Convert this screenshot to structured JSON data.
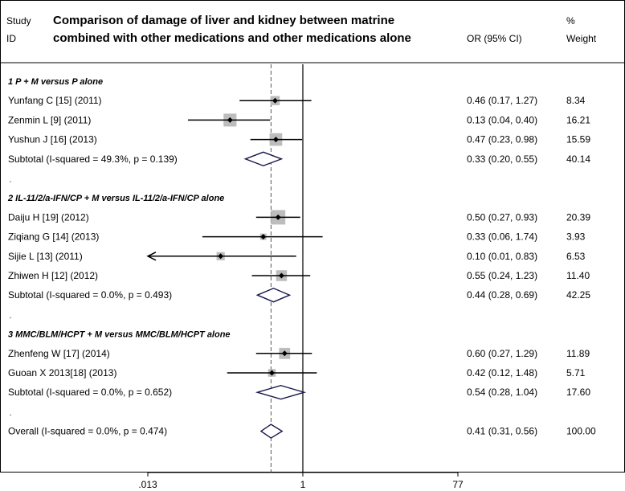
{
  "header": {
    "study_label": "Study",
    "id_label": "ID",
    "title_line1": "Comparison of damage of liver and kidney between matrine",
    "title_line2": "combined with other medications and other medications alone",
    "or_label": "OR (95% CI)",
    "weight_label_line1": "%",
    "weight_label_line2": "Weight"
  },
  "chart_data": {
    "type": "forest",
    "title": "Comparison of damage of liver and kidney between matrine combined with other medications and other medications alone",
    "scale": "log",
    "xlim": [
      0.013,
      77
    ],
    "x_ticks": [
      {
        "value": 0.013,
        "label": ".013"
      },
      {
        "value": 1,
        "label": "1"
      },
      {
        "value": 77,
        "label": "77"
      }
    ],
    "null_line": 1,
    "overall_effect": 0.41,
    "rows": [
      {
        "kind": "group",
        "text": "1  P + M versus P alone"
      },
      {
        "kind": "study",
        "name": "Yunfang C [15] (2011)",
        "or": 0.46,
        "lo": 0.17,
        "hi": 1.27,
        "ci_text": "0.46 (0.17, 1.27)",
        "weight": 8.34,
        "weight_text": "8.34"
      },
      {
        "kind": "study",
        "name": "Zenmin L [9] (2011)",
        "or": 0.13,
        "lo": 0.04,
        "hi": 0.4,
        "ci_text": "0.13 (0.04, 0.40)",
        "weight": 16.21,
        "weight_text": "16.21"
      },
      {
        "kind": "study",
        "name": "Yushun J [16] (2013)",
        "or": 0.47,
        "lo": 0.23,
        "hi": 0.98,
        "ci_text": "0.47 (0.23, 0.98)",
        "weight": 15.59,
        "weight_text": "15.59"
      },
      {
        "kind": "subtotal",
        "name": "Subtotal  (I-squared = 49.3%, p = 0.139)",
        "or": 0.33,
        "lo": 0.2,
        "hi": 0.55,
        "ci_text": "0.33 (0.20, 0.55)",
        "weight_text": "40.14"
      },
      {
        "kind": "spacer"
      },
      {
        "kind": "group",
        "text": "2  IL-11/2/a-IFN/CP + M versus IL-11/2/a-IFN/CP alone"
      },
      {
        "kind": "study",
        "name": "Daiju H [19] (2012)",
        "or": 0.5,
        "lo": 0.27,
        "hi": 0.93,
        "ci_text": "0.50 (0.27, 0.93)",
        "weight": 20.39,
        "weight_text": "20.39"
      },
      {
        "kind": "study",
        "name": "Ziqiang G [14] (2013)",
        "or": 0.33,
        "lo": 0.06,
        "hi": 1.74,
        "ci_text": "0.33 (0.06, 1.74)",
        "weight": 3.93,
        "weight_text": "3.93"
      },
      {
        "kind": "study",
        "name": "Sijie L [13] (2011)",
        "or": 0.1,
        "lo": 0.01,
        "hi": 0.83,
        "ci_text": "0.10 (0.01, 0.83)",
        "weight": 6.53,
        "weight_text": "6.53",
        "arrow_left": true
      },
      {
        "kind": "study",
        "name": "Zhiwen H [12] (2012)",
        "or": 0.55,
        "lo": 0.24,
        "hi": 1.23,
        "ci_text": "0.55 (0.24, 1.23)",
        "weight": 11.4,
        "weight_text": "11.40"
      },
      {
        "kind": "subtotal",
        "name": "Subtotal  (I-squared = 0.0%, p = 0.493)",
        "or": 0.44,
        "lo": 0.28,
        "hi": 0.69,
        "ci_text": "0.44 (0.28, 0.69)",
        "weight_text": "42.25"
      },
      {
        "kind": "spacer"
      },
      {
        "kind": "group",
        "text": "3  MMC/BLM/HCPT + M versus MMC/BLM/HCPT  alone"
      },
      {
        "kind": "study",
        "name": "Zhenfeng W [17] (2014)",
        "or": 0.6,
        "lo": 0.27,
        "hi": 1.29,
        "ci_text": "0.60 (0.27, 1.29)",
        "weight": 11.89,
        "weight_text": "11.89"
      },
      {
        "kind": "study",
        "name": "Guoan X 2013[18] (2013)",
        "or": 0.42,
        "lo": 0.12,
        "hi": 1.48,
        "ci_text": "0.42 (0.12, 1.48)",
        "weight": 5.71,
        "weight_text": "5.71"
      },
      {
        "kind": "subtotal",
        "name": "Subtotal  (I-squared = 0.0%, p = 0.652)",
        "or": 0.54,
        "lo": 0.28,
        "hi": 1.04,
        "ci_text": "0.54 (0.28, 1.04)",
        "weight_text": "17.60"
      },
      {
        "kind": "spacer"
      },
      {
        "kind": "overall",
        "name": "Overall  (I-squared = 0.0%, p = 0.474)",
        "or": 0.41,
        "lo": 0.31,
        "hi": 0.56,
        "ci_text": "0.41 (0.31, 0.56)",
        "weight_text": "100.00"
      }
    ]
  }
}
